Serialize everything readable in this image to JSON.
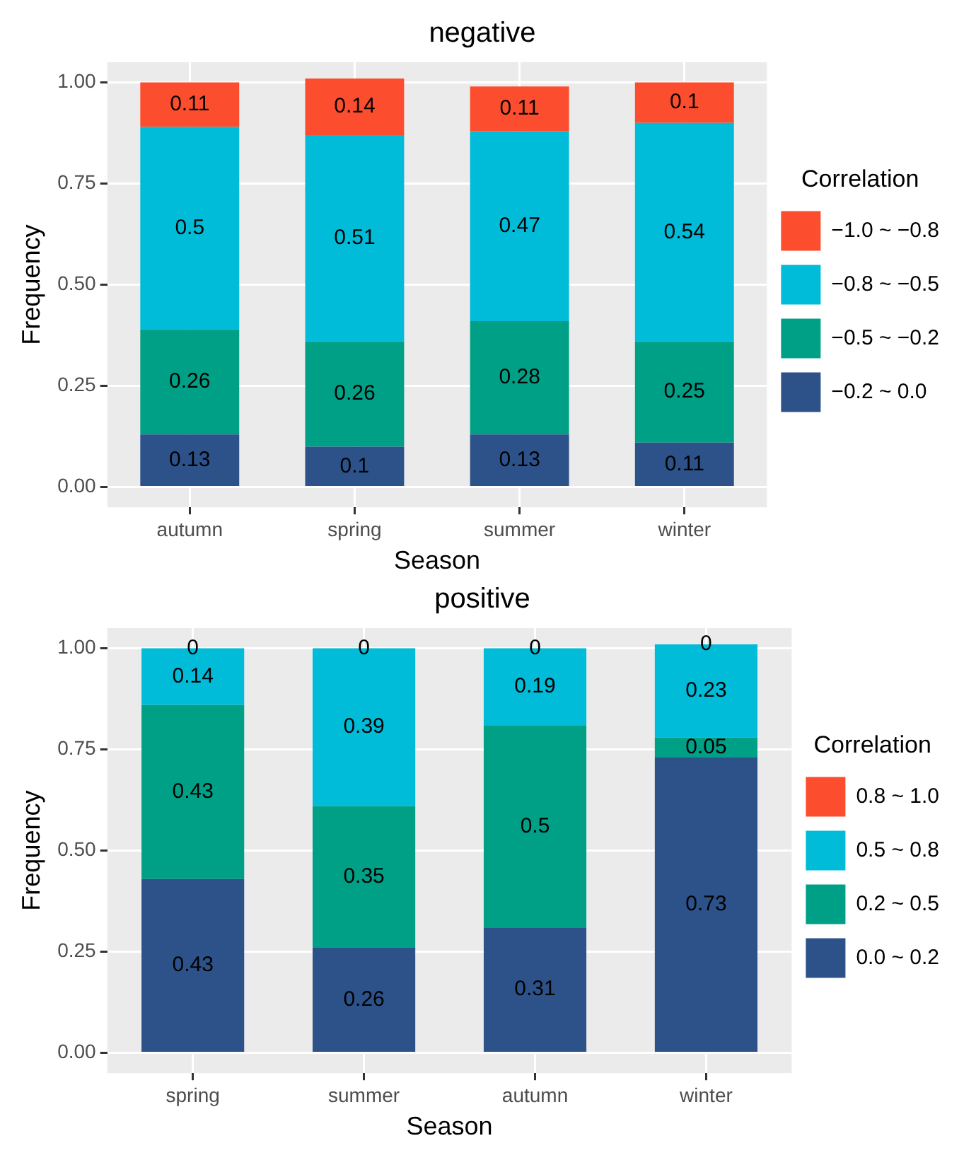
{
  "chart_data": [
    {
      "type": "bar",
      "title": "negative",
      "xlabel": "Season",
      "ylabel": "Frequency",
      "legend_title": "Correlation",
      "categories": [
        "autumn",
        "spring",
        "summer",
        "winter"
      ],
      "stacked": true,
      "data_labels": true,
      "grid": true,
      "legend": "right",
      "ylim": [
        -0.05,
        1.05
      ],
      "yticks": [
        {
          "value": 0,
          "label": "0.00"
        },
        {
          "value": 0.25,
          "label": "0.25"
        },
        {
          "value": 0.5,
          "label": "0.50"
        },
        {
          "value": 0.75,
          "label": "0.75"
        },
        {
          "value": 1,
          "label": "1.00"
        }
      ],
      "series": [
        {
          "name": "−0.2 ~ 0.0",
          "color": "#2c5289",
          "values": [
            0.13,
            0.1,
            0.13,
            0.11
          ]
        },
        {
          "name": "−0.5 ~ −0.2",
          "color": "#00a087",
          "values": [
            0.26,
            0.26,
            0.28,
            0.25
          ]
        },
        {
          "name": "−0.8 ~ −0.5",
          "color": "#00bcd9",
          "values": [
            0.5,
            0.51,
            0.47,
            0.54
          ]
        },
        {
          "name": "−1.0 ~ −0.8",
          "color": "#fc4e2f",
          "values": [
            0.11,
            0.14,
            0.11,
            0.1
          ]
        }
      ]
    },
    {
      "type": "bar",
      "title": "positive",
      "xlabel": "Season",
      "ylabel": "Frequency",
      "legend_title": "Correlation",
      "categories": [
        "spring",
        "summer",
        "autumn",
        "winter"
      ],
      "stacked": true,
      "data_labels": true,
      "grid": true,
      "legend": "right",
      "ylim": [
        -0.05,
        1.05
      ],
      "yticks": [
        {
          "value": 0,
          "label": "0.00"
        },
        {
          "value": 0.25,
          "label": "0.25"
        },
        {
          "value": 0.5,
          "label": "0.50"
        },
        {
          "value": 0.75,
          "label": "0.75"
        },
        {
          "value": 1,
          "label": "1.00"
        }
      ],
      "series": [
        {
          "name": "0.0 ~ 0.2",
          "color": "#2c5289",
          "values": [
            0.43,
            0.26,
            0.31,
            0.73
          ]
        },
        {
          "name": "0.2 ~ 0.5",
          "color": "#00a087",
          "values": [
            0.43,
            0.35,
            0.5,
            0.05
          ]
        },
        {
          "name": "0.5 ~ 0.8",
          "color": "#00bcd9",
          "values": [
            0.14,
            0.39,
            0.19,
            0.23
          ]
        },
        {
          "name": "0.8 ~ 1.0",
          "color": "#fc4e2f",
          "values": [
            0,
            0,
            0,
            0
          ]
        }
      ]
    }
  ]
}
